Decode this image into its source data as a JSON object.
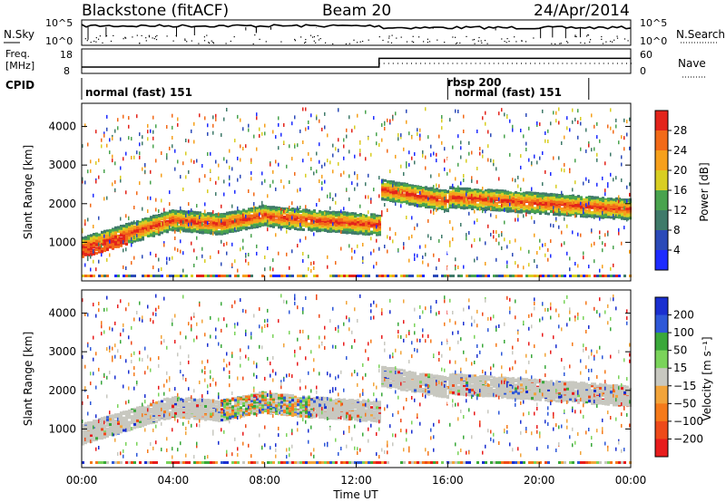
{
  "header": {
    "station": "Blackstone (fitACF)",
    "beam": "Beam 20",
    "date": "24/Apr/2014"
  },
  "chart_data": [
    {
      "type": "line",
      "panel": "noise",
      "left_label": "N.Sky",
      "right_label": "N.Search",
      "left_ticks": [
        "10^5",
        "10^0"
      ],
      "right_ticks": [
        "10^5",
        "10^0"
      ],
      "scale": "log"
    },
    {
      "type": "line",
      "panel": "frequency",
      "left_label_1": "Freq.",
      "left_label_2": "[MHz]",
      "right_label": "Nave",
      "left_ticks": [
        18,
        8
      ],
      "right_ticks": [
        60,
        0
      ],
      "series": [
        {
          "name": "Freq",
          "x": [
            "00:00",
            "13:00",
            "13:00",
            "24:00"
          ],
          "values": [
            10.5,
            10.5,
            14.5,
            14.5
          ]
        }
      ]
    },
    {
      "type": "table",
      "panel": "cpid",
      "label": "CPID",
      "segments": [
        {
          "text": "normal (fast) 151",
          "start": "00:00"
        },
        {
          "text": "rbsp 200",
          "start": "16:00"
        },
        {
          "text": "normal (fast) 151",
          "start": "16:00"
        }
      ],
      "markers": [
        "00:00",
        "16:00",
        "22:10"
      ]
    },
    {
      "type": "heatmap",
      "panel": "power",
      "ylabel": "Slant Range [km]",
      "yticks": [
        1000,
        2000,
        3000,
        4000
      ],
      "colorbar_label": "Power [dB]",
      "colorbar_ticks": [
        4,
        8,
        12,
        16,
        20,
        24,
        28
      ],
      "colors": [
        "#1d2bff",
        "#2b4ab8",
        "#3f7a6a",
        "#49a34e",
        "#d8ce22",
        "#f6a01c",
        "#f26a18",
        "#e3241b"
      ]
    },
    {
      "type": "heatmap",
      "panel": "velocity",
      "ylabel": "Slant Range [km]",
      "yticks": [
        1000,
        2000,
        3000,
        4000
      ],
      "xlabel": "Time UT",
      "xticks": [
        "00:00",
        "04:00",
        "08:00",
        "12:00",
        "16:00",
        "20:00",
        "00:00"
      ],
      "colorbar_label": "Velocity [m s⁻¹]",
      "colorbar_ticks": [
        "200",
        "100",
        "50",
        "15",
        "−15",
        "−50",
        "−100",
        "−200"
      ],
      "colors": [
        "#1a2fd0",
        "#2e58d8",
        "#3aa83a",
        "#7ad35a",
        "#c8c8c0",
        "#f2a43a",
        "#f57a1a",
        "#ee4a1a",
        "#e81c1c"
      ]
    }
  ]
}
